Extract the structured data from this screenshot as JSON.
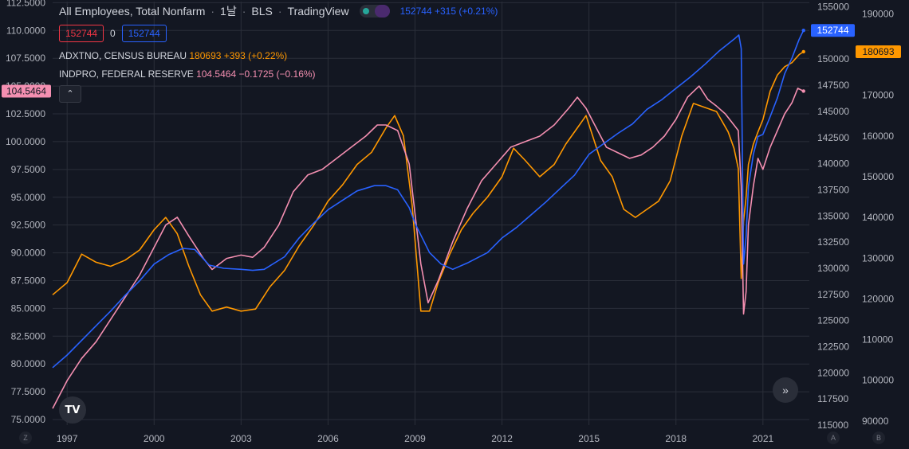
{
  "legend": {
    "title": "All Employees, Total Nonfarm",
    "interval": "1날",
    "source": "BLS",
    "platform": "TradingView",
    "main_value": "152744",
    "main_change": "+315 (+0.21%)",
    "box_left": "152744",
    "box_mid": "0",
    "box_right": "152744",
    "adxtno_name": "ADXTNO, CENSUS BUREAU",
    "adxtno_value": "180693",
    "adxtno_change": "+393 (+0.22%)",
    "indpro_name": "INDPRO, FEDERAL RESERVE",
    "indpro_value": "104.5464",
    "indpro_change": "−0.1725 (−0.16%)",
    "collapse_glyph": "⌃"
  },
  "badges": {
    "payems": "152744",
    "adxtno": "180693",
    "indpro": "104.5464"
  },
  "controls": {
    "scroll_glyph": "»",
    "logo_text": "TV",
    "corner_z": "Z",
    "corner_a": "A",
    "corner_b": "B"
  },
  "colors": {
    "background": "#131722",
    "grid": "#2a2e39",
    "axis_text": "#b2b5be",
    "payems": "#2962ff",
    "adxtno": "#ff9800",
    "indpro": "#f48fb1"
  },
  "chart_data": {
    "type": "line",
    "title": "All Employees, Total Nonfarm",
    "x_ticks": [
      "1997",
      "2000",
      "2003",
      "2006",
      "2009",
      "2012",
      "2015",
      "2018",
      "2021"
    ],
    "x_range": [
      1996.5,
      2022.6
    ],
    "axes": {
      "left": {
        "series": "INDPRO",
        "range": [
          74.5,
          112.6
        ],
        "ticks": [
          "75.0000",
          "77.5000",
          "80.0000",
          "82.5000",
          "85.0000",
          "87.5000",
          "90.0000",
          "92.5000",
          "95.0000",
          "97.5000",
          "100.0000",
          "102.5000",
          "105.0000",
          "107.5000",
          "110.0000",
          "112.5000"
        ]
      },
      "right_inner": {
        "series": "PAYEMS",
        "range": [
          115000,
          155500
        ],
        "ticks": [
          "115000",
          "117500",
          "120000",
          "122500",
          "125000",
          "127500",
          "130000",
          "132500",
          "135000",
          "137500",
          "140000",
          "142500",
          "145000",
          "147500",
          "150000",
          "152500",
          "155000"
        ]
      },
      "right_outer": {
        "series": "ADXTNO",
        "range": [
          89000,
          193000
        ],
        "ticks": [
          "90000",
          "100000",
          "110000",
          "120000",
          "130000",
          "140000",
          "150000",
          "160000",
          "170000",
          "180000",
          "190000"
        ]
      }
    },
    "series": [
      {
        "name": "All Employees, Total Nonfarm",
        "axis": "right_inner",
        "x": [
          1996.5,
          1997.0,
          1997.5,
          1998.0,
          1998.5,
          1999.0,
          1999.5,
          2000.0,
          2000.5,
          2001.0,
          2001.4,
          2001.9,
          2002.4,
          2003.0,
          2003.4,
          2003.8,
          2004.5,
          2005.0,
          2005.5,
          2006.0,
          2006.5,
          2007.0,
          2007.6,
          2008.0,
          2008.4,
          2008.8,
          2009.0,
          2009.5,
          2009.9,
          2010.3,
          2010.8,
          2011.5,
          2012.0,
          2012.5,
          2013.0,
          2013.5,
          2014.0,
          2014.5,
          2015.0,
          2015.5,
          2016.0,
          2016.5,
          2017.0,
          2017.5,
          2018.0,
          2018.5,
          2019.0,
          2019.5,
          2020.0,
          2020.17,
          2020.25,
          2020.33,
          2020.42,
          2020.5,
          2020.67,
          2020.83,
          2021.0,
          2021.25,
          2021.5,
          2021.75,
          2022.0,
          2022.25,
          2022.4
        ],
        "values": [
          120500,
          121700,
          123100,
          124500,
          125900,
          127400,
          128800,
          130400,
          131300,
          131900,
          131800,
          130300,
          130000,
          129900,
          129800,
          129900,
          131100,
          132900,
          134300,
          135600,
          136500,
          137400,
          137900,
          137900,
          137500,
          135800,
          134300,
          131500,
          130400,
          129900,
          130500,
          131500,
          132900,
          133900,
          135100,
          136300,
          137600,
          138900,
          140900,
          141900,
          142900,
          143800,
          145200,
          146100,
          147200,
          148300,
          149500,
          150800,
          151900,
          152300,
          151000,
          130400,
          133000,
          137800,
          140900,
          142600,
          142800,
          144500,
          146300,
          148600,
          150100,
          151900,
          152744
        ]
      },
      {
        "name": "ADXTNO, CENSUS BUREAU",
        "axis": "right_outer",
        "x": [
          1996.5,
          1997.0,
          1997.5,
          1998.0,
          1998.5,
          1999.0,
          1999.5,
          2000.0,
          2000.4,
          2000.8,
          2001.2,
          2001.6,
          2002.0,
          2002.5,
          2003.0,
          2003.5,
          2004.0,
          2004.5,
          2005.0,
          2005.5,
          2006.0,
          2006.5,
          2007.0,
          2007.5,
          2008.0,
          2008.3,
          2008.6,
          2008.9,
          2009.2,
          2009.5,
          2009.8,
          2010.2,
          2010.6,
          2011.0,
          2011.5,
          2012.0,
          2012.4,
          2012.8,
          2013.3,
          2013.8,
          2014.2,
          2014.6,
          2014.9,
          2015.4,
          2015.8,
          2016.2,
          2016.6,
          2017.0,
          2017.4,
          2017.8,
          2018.2,
          2018.6,
          2019.0,
          2019.4,
          2019.8,
          2020.0,
          2020.15,
          2020.25,
          2020.33,
          2020.42,
          2020.5,
          2020.67,
          2020.83,
          2021.0,
          2021.25,
          2021.5,
          2021.75,
          2022.0,
          2022.25,
          2022.4
        ],
        "values": [
          121000,
          124000,
          131000,
          129000,
          128000,
          129500,
          132000,
          137000,
          140000,
          136000,
          128000,
          121000,
          117000,
          118000,
          117000,
          117500,
          123000,
          127000,
          133000,
          138000,
          144000,
          148000,
          153000,
          156000,
          162000,
          165000,
          160000,
          143000,
          117000,
          117000,
          124000,
          131000,
          137000,
          141000,
          145000,
          150000,
          157000,
          154000,
          150000,
          153000,
          158000,
          162000,
          165000,
          154000,
          150000,
          142000,
          140000,
          142000,
          144000,
          149000,
          160000,
          168000,
          167000,
          166000,
          161000,
          157000,
          152000,
          125000,
          139000,
          145000,
          153000,
          158000,
          161000,
          164000,
          171000,
          175000,
          177000,
          178000,
          180000,
          180693
        ]
      },
      {
        "name": "INDPRO, FEDERAL RESERVE",
        "axis": "left",
        "x": [
          1996.5,
          1997.0,
          1997.5,
          1998.0,
          1998.5,
          1999.0,
          1999.5,
          2000.0,
          2000.4,
          2000.8,
          2001.2,
          2001.7,
          2002.0,
          2002.5,
          2003.0,
          2003.4,
          2003.8,
          2004.3,
          2004.8,
          2005.3,
          2005.8,
          2006.3,
          2006.8,
          2007.3,
          2007.7,
          2008.0,
          2008.4,
          2008.8,
          2009.2,
          2009.45,
          2009.8,
          2010.3,
          2010.8,
          2011.3,
          2011.8,
          2012.3,
          2012.8,
          2013.3,
          2013.8,
          2014.3,
          2014.6,
          2014.9,
          2015.2,
          2015.6,
          2016.0,
          2016.4,
          2016.8,
          2017.2,
          2017.6,
          2018.0,
          2018.4,
          2018.8,
          2019.1,
          2019.4,
          2019.7,
          2020.0,
          2020.15,
          2020.25,
          2020.33,
          2020.42,
          2020.5,
          2020.67,
          2020.83,
          2021.0,
          2021.25,
          2021.5,
          2021.75,
          2022.0,
          2022.2,
          2022.4
        ],
        "values": [
          76.0,
          78.5,
          80.5,
          82.0,
          84.0,
          86.0,
          88.0,
          90.5,
          92.5,
          93.2,
          91.5,
          89.5,
          88.5,
          89.5,
          89.8,
          89.6,
          90.5,
          92.5,
          95.5,
          97.0,
          97.5,
          98.5,
          99.5,
          100.5,
          101.5,
          101.5,
          101.0,
          98.0,
          89.0,
          85.5,
          87.5,
          91.0,
          94.0,
          96.5,
          98.0,
          99.5,
          100.0,
          100.5,
          101.5,
          103.0,
          104.0,
          103.0,
          101.5,
          99.5,
          99.0,
          98.5,
          98.8,
          99.5,
          100.5,
          102.0,
          104.0,
          105.0,
          103.8,
          103.2,
          102.5,
          101.5,
          101.0,
          96.0,
          84.5,
          86.5,
          92.5,
          96.0,
          98.5,
          97.5,
          99.5,
          101.0,
          102.5,
          103.5,
          104.8,
          104.5464
        ]
      }
    ]
  }
}
